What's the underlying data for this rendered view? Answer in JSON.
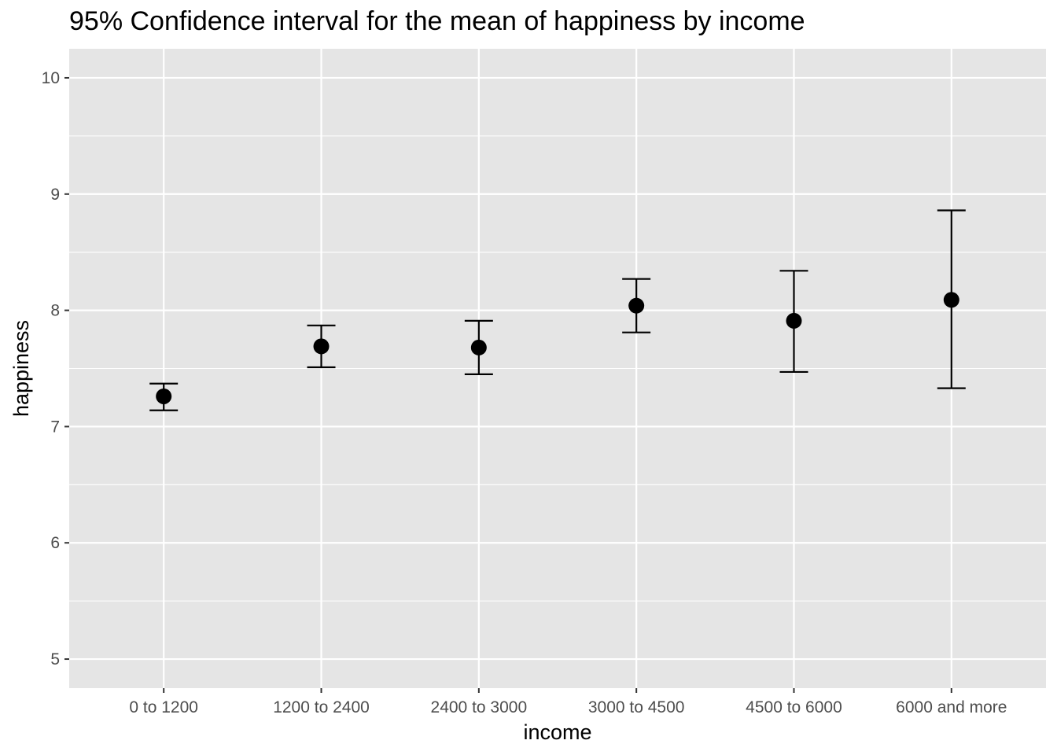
{
  "chart_data": {
    "type": "scatter",
    "subtype": "errorbar",
    "title": "95% Confidence interval for the mean of happiness by income",
    "xlabel": "income",
    "ylabel": "happiness",
    "categories": [
      "0 to 1200",
      "1200 to 2400",
      "2400 to 3000",
      "3000 to 4500",
      "4500 to 6000",
      "6000 and more"
    ],
    "means": [
      7.26,
      7.69,
      7.68,
      8.04,
      7.91,
      8.09
    ],
    "lower": [
      7.14,
      7.51,
      7.45,
      7.81,
      7.47,
      7.33
    ],
    "upper": [
      7.37,
      7.87,
      7.91,
      8.27,
      8.34,
      8.86
    ],
    "ylim": [
      4.75,
      10.25
    ],
    "yticks": [
      "5",
      "6",
      "7",
      "8",
      "9",
      "10"
    ],
    "grid": true,
    "panel_color": "#e5e5e5",
    "grid_color": "#ffffff",
    "point_color": "#000000"
  }
}
